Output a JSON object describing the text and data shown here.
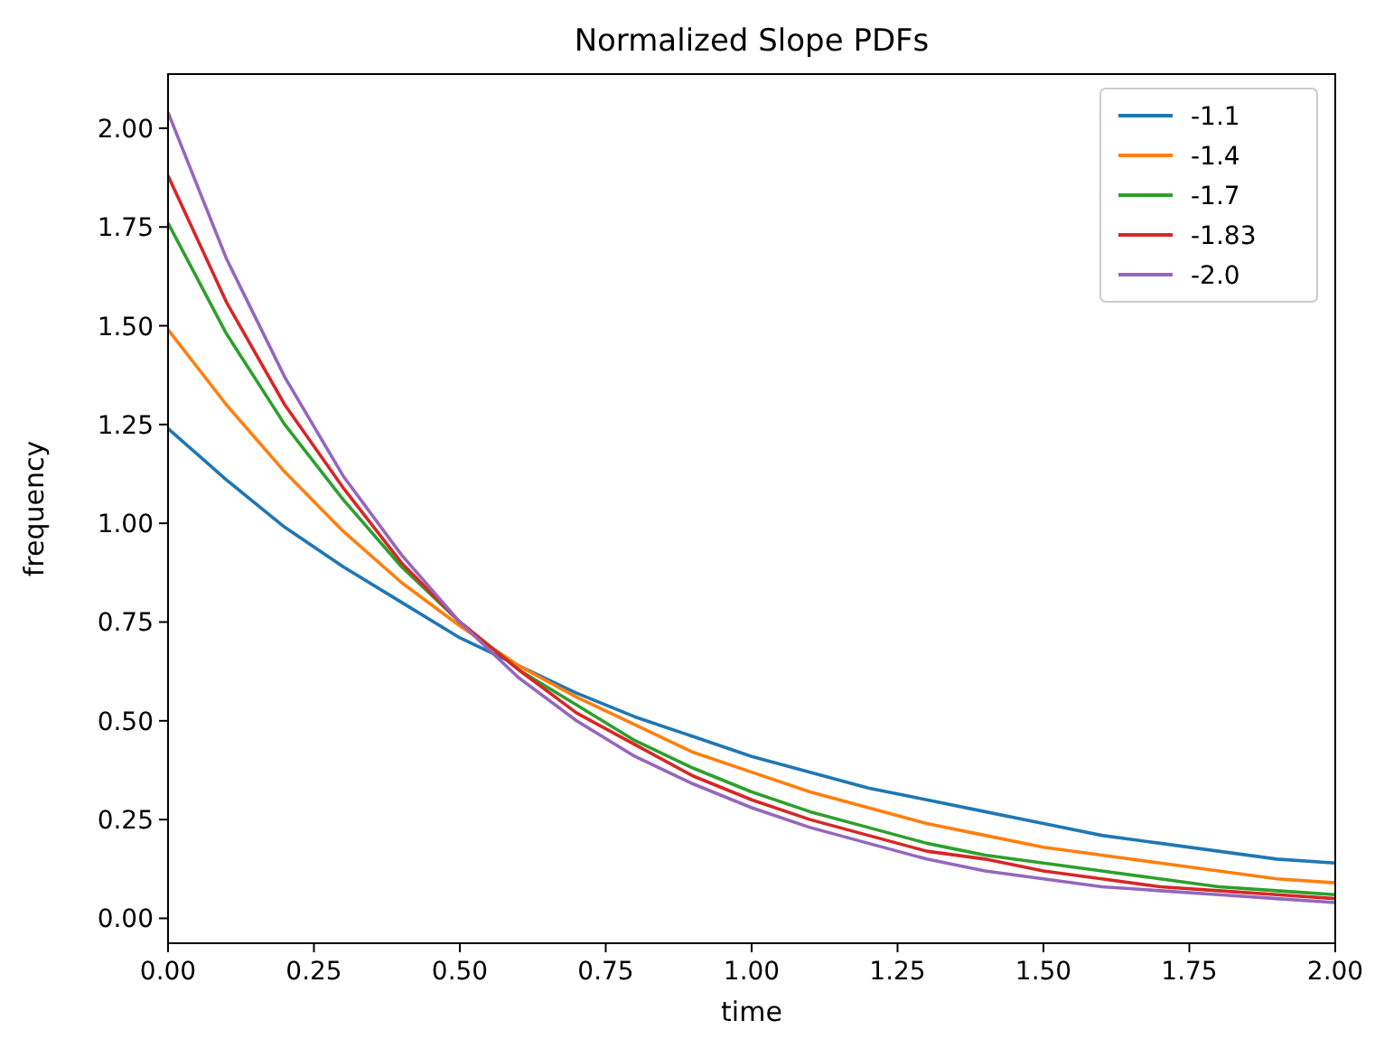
{
  "chart_data": {
    "type": "line",
    "title": "Normalized Slope PDFs",
    "xlabel": "time",
    "ylabel": "frequency",
    "x": [
      0,
      0.1,
      0.2,
      0.3,
      0.4,
      0.5,
      0.6,
      0.7,
      0.8,
      0.9,
      1.0,
      1.1,
      1.2,
      1.3,
      1.4,
      1.5,
      1.6,
      1.7,
      1.8,
      1.9,
      2.0
    ],
    "series": [
      {
        "name": "-1.1",
        "color": "#1f77b4",
        "values": [
          1.24,
          1.11,
          0.99,
          0.89,
          0.8,
          0.71,
          0.64,
          0.57,
          0.51,
          0.46,
          0.41,
          0.37,
          0.33,
          0.3,
          0.27,
          0.24,
          0.21,
          0.19,
          0.17,
          0.15,
          0.14
        ]
      },
      {
        "name": "-1.4",
        "color": "#ff7f0e",
        "values": [
          1.49,
          1.3,
          1.13,
          0.98,
          0.85,
          0.74,
          0.64,
          0.56,
          0.49,
          0.42,
          0.37,
          0.32,
          0.28,
          0.24,
          0.21,
          0.18,
          0.16,
          0.14,
          0.12,
          0.1,
          0.09
        ]
      },
      {
        "name": "-1.7",
        "color": "#2ca02c",
        "values": [
          1.76,
          1.48,
          1.25,
          1.06,
          0.89,
          0.75,
          0.63,
          0.54,
          0.45,
          0.38,
          0.32,
          0.27,
          0.23,
          0.19,
          0.16,
          0.14,
          0.12,
          0.1,
          0.08,
          0.07,
          0.06
        ]
      },
      {
        "name": "-1.83",
        "color": "#d62728",
        "values": [
          1.88,
          1.56,
          1.3,
          1.09,
          0.9,
          0.75,
          0.63,
          0.52,
          0.44,
          0.36,
          0.3,
          0.25,
          0.21,
          0.17,
          0.15,
          0.12,
          0.1,
          0.08,
          0.07,
          0.06,
          0.05
        ]
      },
      {
        "name": "-2.0",
        "color": "#9467bd",
        "values": [
          2.04,
          1.67,
          1.37,
          1.12,
          0.92,
          0.75,
          0.61,
          0.5,
          0.41,
          0.34,
          0.28,
          0.23,
          0.19,
          0.15,
          0.12,
          0.1,
          0.08,
          0.07,
          0.06,
          0.05,
          0.04
        ]
      }
    ],
    "xlim": [
      0,
      2
    ],
    "xticks": [
      {
        "value": 0,
        "label": "0.00"
      },
      {
        "value": 0.25,
        "label": "0.25"
      },
      {
        "value": 0.5,
        "label": "0.50"
      },
      {
        "value": 0.75,
        "label": "0.75"
      },
      {
        "value": 1,
        "label": "1.00"
      },
      {
        "value": 1.25,
        "label": "1.25"
      },
      {
        "value": 1.5,
        "label": "1.50"
      },
      {
        "value": 1.75,
        "label": "1.75"
      },
      {
        "value": 2,
        "label": "2.00"
      }
    ],
    "ylim": [
      -0.063,
      2.137
    ],
    "yticks": [
      {
        "value": 0,
        "label": "0.00"
      },
      {
        "value": 0.25,
        "label": "0.25"
      },
      {
        "value": 0.5,
        "label": "0.50"
      },
      {
        "value": 0.75,
        "label": "0.75"
      },
      {
        "value": 1,
        "label": "1.00"
      },
      {
        "value": 1.25,
        "label": "1.25"
      },
      {
        "value": 1.5,
        "label": "1.50"
      },
      {
        "value": 1.75,
        "label": "1.75"
      },
      {
        "value": 2,
        "label": "2.00"
      }
    ],
    "legend": "top right",
    "marker": "none",
    "line_style": "solid"
  }
}
